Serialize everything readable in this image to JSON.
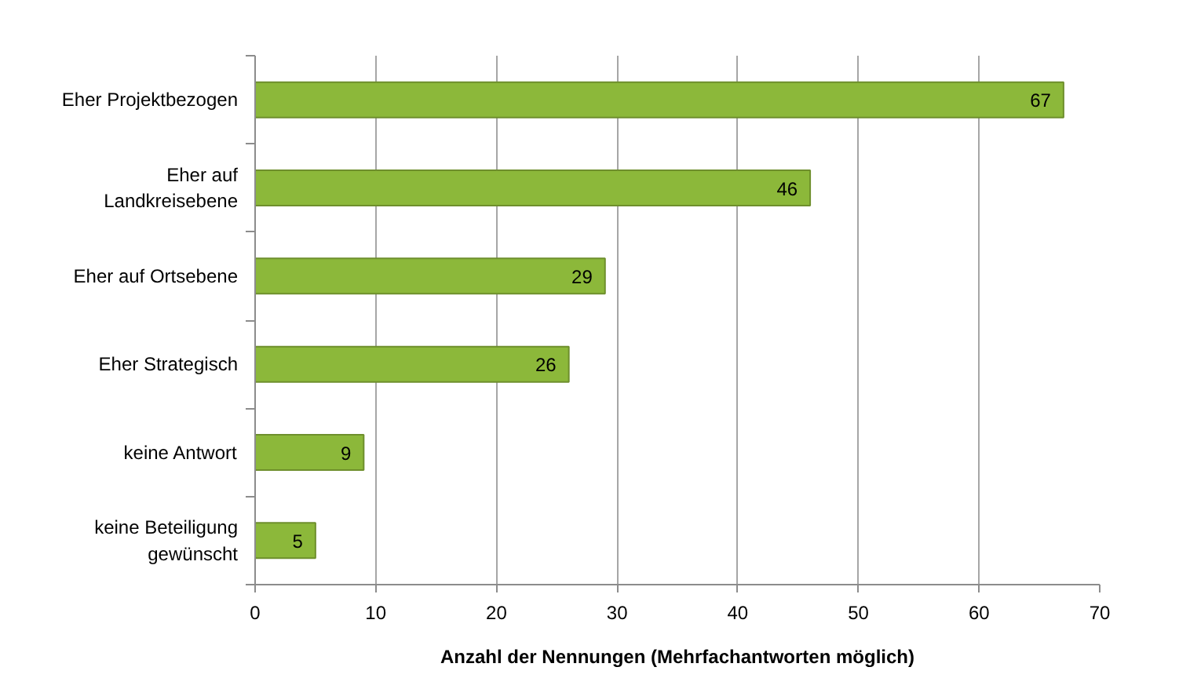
{
  "chart_data": {
    "type": "bar",
    "orientation": "horizontal",
    "categories": [
      "Eher Projektbezogen",
      "Eher auf Landkreisebene",
      "Eher auf Ortsebene",
      "Eher Strategisch",
      "keine Antwort",
      "keine Beteiligung gewünscht"
    ],
    "values": [
      67,
      46,
      29,
      26,
      9,
      5
    ],
    "color": "#8cb83a",
    "xlabel": "Anzahl der Nennungen (Mehrfachantworten möglich)",
    "xlim": [
      0,
      70
    ],
    "xticks": [
      0,
      10,
      20,
      30,
      40,
      50,
      60,
      70
    ],
    "grid": "x",
    "data_labels": true
  }
}
